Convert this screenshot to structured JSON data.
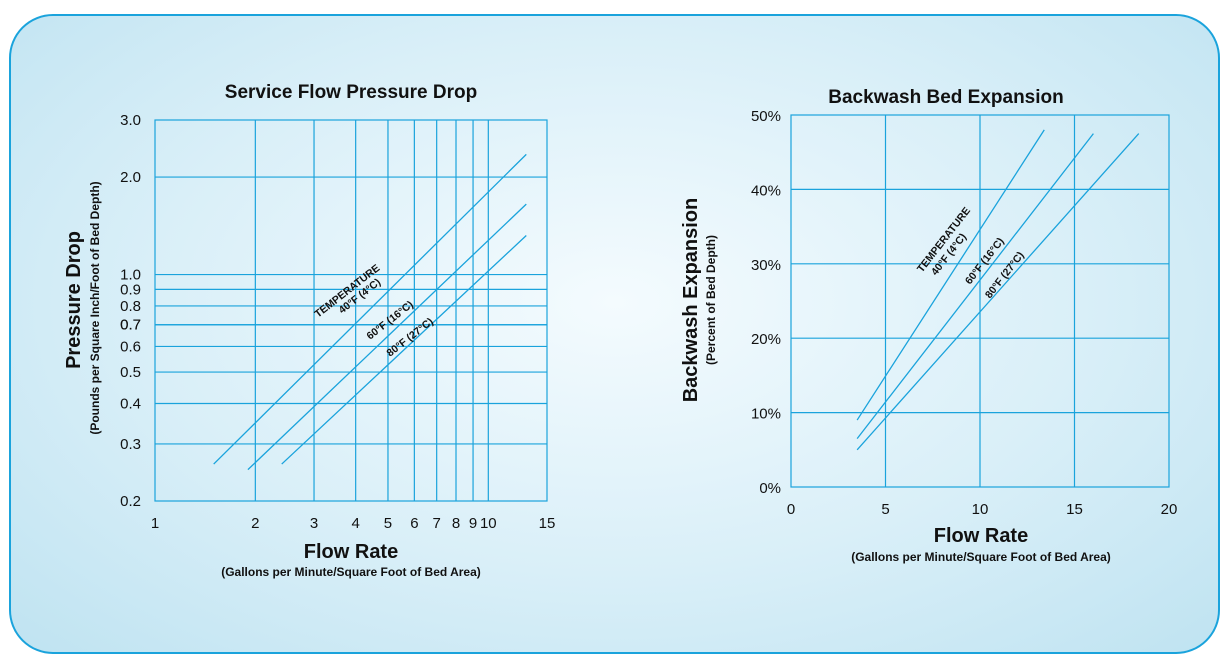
{
  "chart_data": [
    {
      "type": "line",
      "title": "Service Flow Pressure Drop",
      "ylabel": "Pressure Drop",
      "ylabel_sub": "(Pounds per Square Inch/Foot of Bed Depth)",
      "xlabel": "Flow Rate",
      "xlabel_sub": "(Gallons per Minute/Square Foot of Bed Area)",
      "x_scale": "log",
      "y_scale": "log",
      "xlim": [
        1,
        15
      ],
      "ylim": [
        0.2,
        3.0
      ],
      "x_ticks": [
        "1",
        "2",
        "3",
        "4",
        "5",
        "6",
        "7",
        "8",
        "9",
        "10",
        "15"
      ],
      "y_ticks": [
        "0.2",
        "0.3",
        "0.4",
        "0.5",
        "0.6",
        "0.7",
        "0.7",
        "0.8",
        "0.9",
        "1.0",
        "2.0",
        "3.0"
      ],
      "y_tick_values": [
        0.2,
        0.3,
        0.4,
        0.5,
        0.6,
        0.7,
        0.7,
        0.8,
        0.9,
        1.0,
        2.0,
        3.0
      ],
      "grid": true,
      "annotation_heading": "TEMPERATURE",
      "series": [
        {
          "name": "40°F (4°C)",
          "x": [
            1.5,
            13.0
          ],
          "y": [
            0.26,
            2.35
          ]
        },
        {
          "name": "60°F (16°C)",
          "x": [
            1.9,
            13.0
          ],
          "y": [
            0.25,
            1.65
          ]
        },
        {
          "name": "80°F (27°C)",
          "x": [
            2.4,
            13.0
          ],
          "y": [
            0.26,
            1.32
          ]
        }
      ]
    },
    {
      "type": "line",
      "title": "Backwash Bed Expansion",
      "ylabel": "Backwash Expansion",
      "ylabel_sub": "(Percent of Bed Depth)",
      "xlabel": "Flow Rate",
      "xlabel_sub": "(Gallons per Minute/Square Foot of Bed Area)",
      "xlim": [
        0,
        20
      ],
      "ylim": [
        0,
        50
      ],
      "x_ticks": [
        "0",
        "5",
        "10",
        "15",
        "20"
      ],
      "x_tick_values": [
        0,
        5,
        10,
        15,
        20
      ],
      "y_ticks": [
        "0%",
        "10%",
        "20%",
        "30%",
        "40%",
        "50%"
      ],
      "y_tick_values": [
        0,
        10,
        20,
        30,
        40,
        50
      ],
      "grid": true,
      "annotation_heading": "TEMPERATURE",
      "series": [
        {
          "name": "40°F (4°C)",
          "x": [
            3.5,
            13.4
          ],
          "y": [
            9.0,
            48.0
          ]
        },
        {
          "name": "60°F (16°C)",
          "x": [
            3.5,
            16.0
          ],
          "y": [
            6.5,
            47.5
          ]
        },
        {
          "name": "80°F (27°C)",
          "x": [
            3.5,
            18.4
          ],
          "y": [
            5.0,
            47.5
          ]
        }
      ]
    }
  ],
  "colors": {
    "grid": "#1aa3dc",
    "border": "#1aa3dc",
    "text": "#111111"
  }
}
